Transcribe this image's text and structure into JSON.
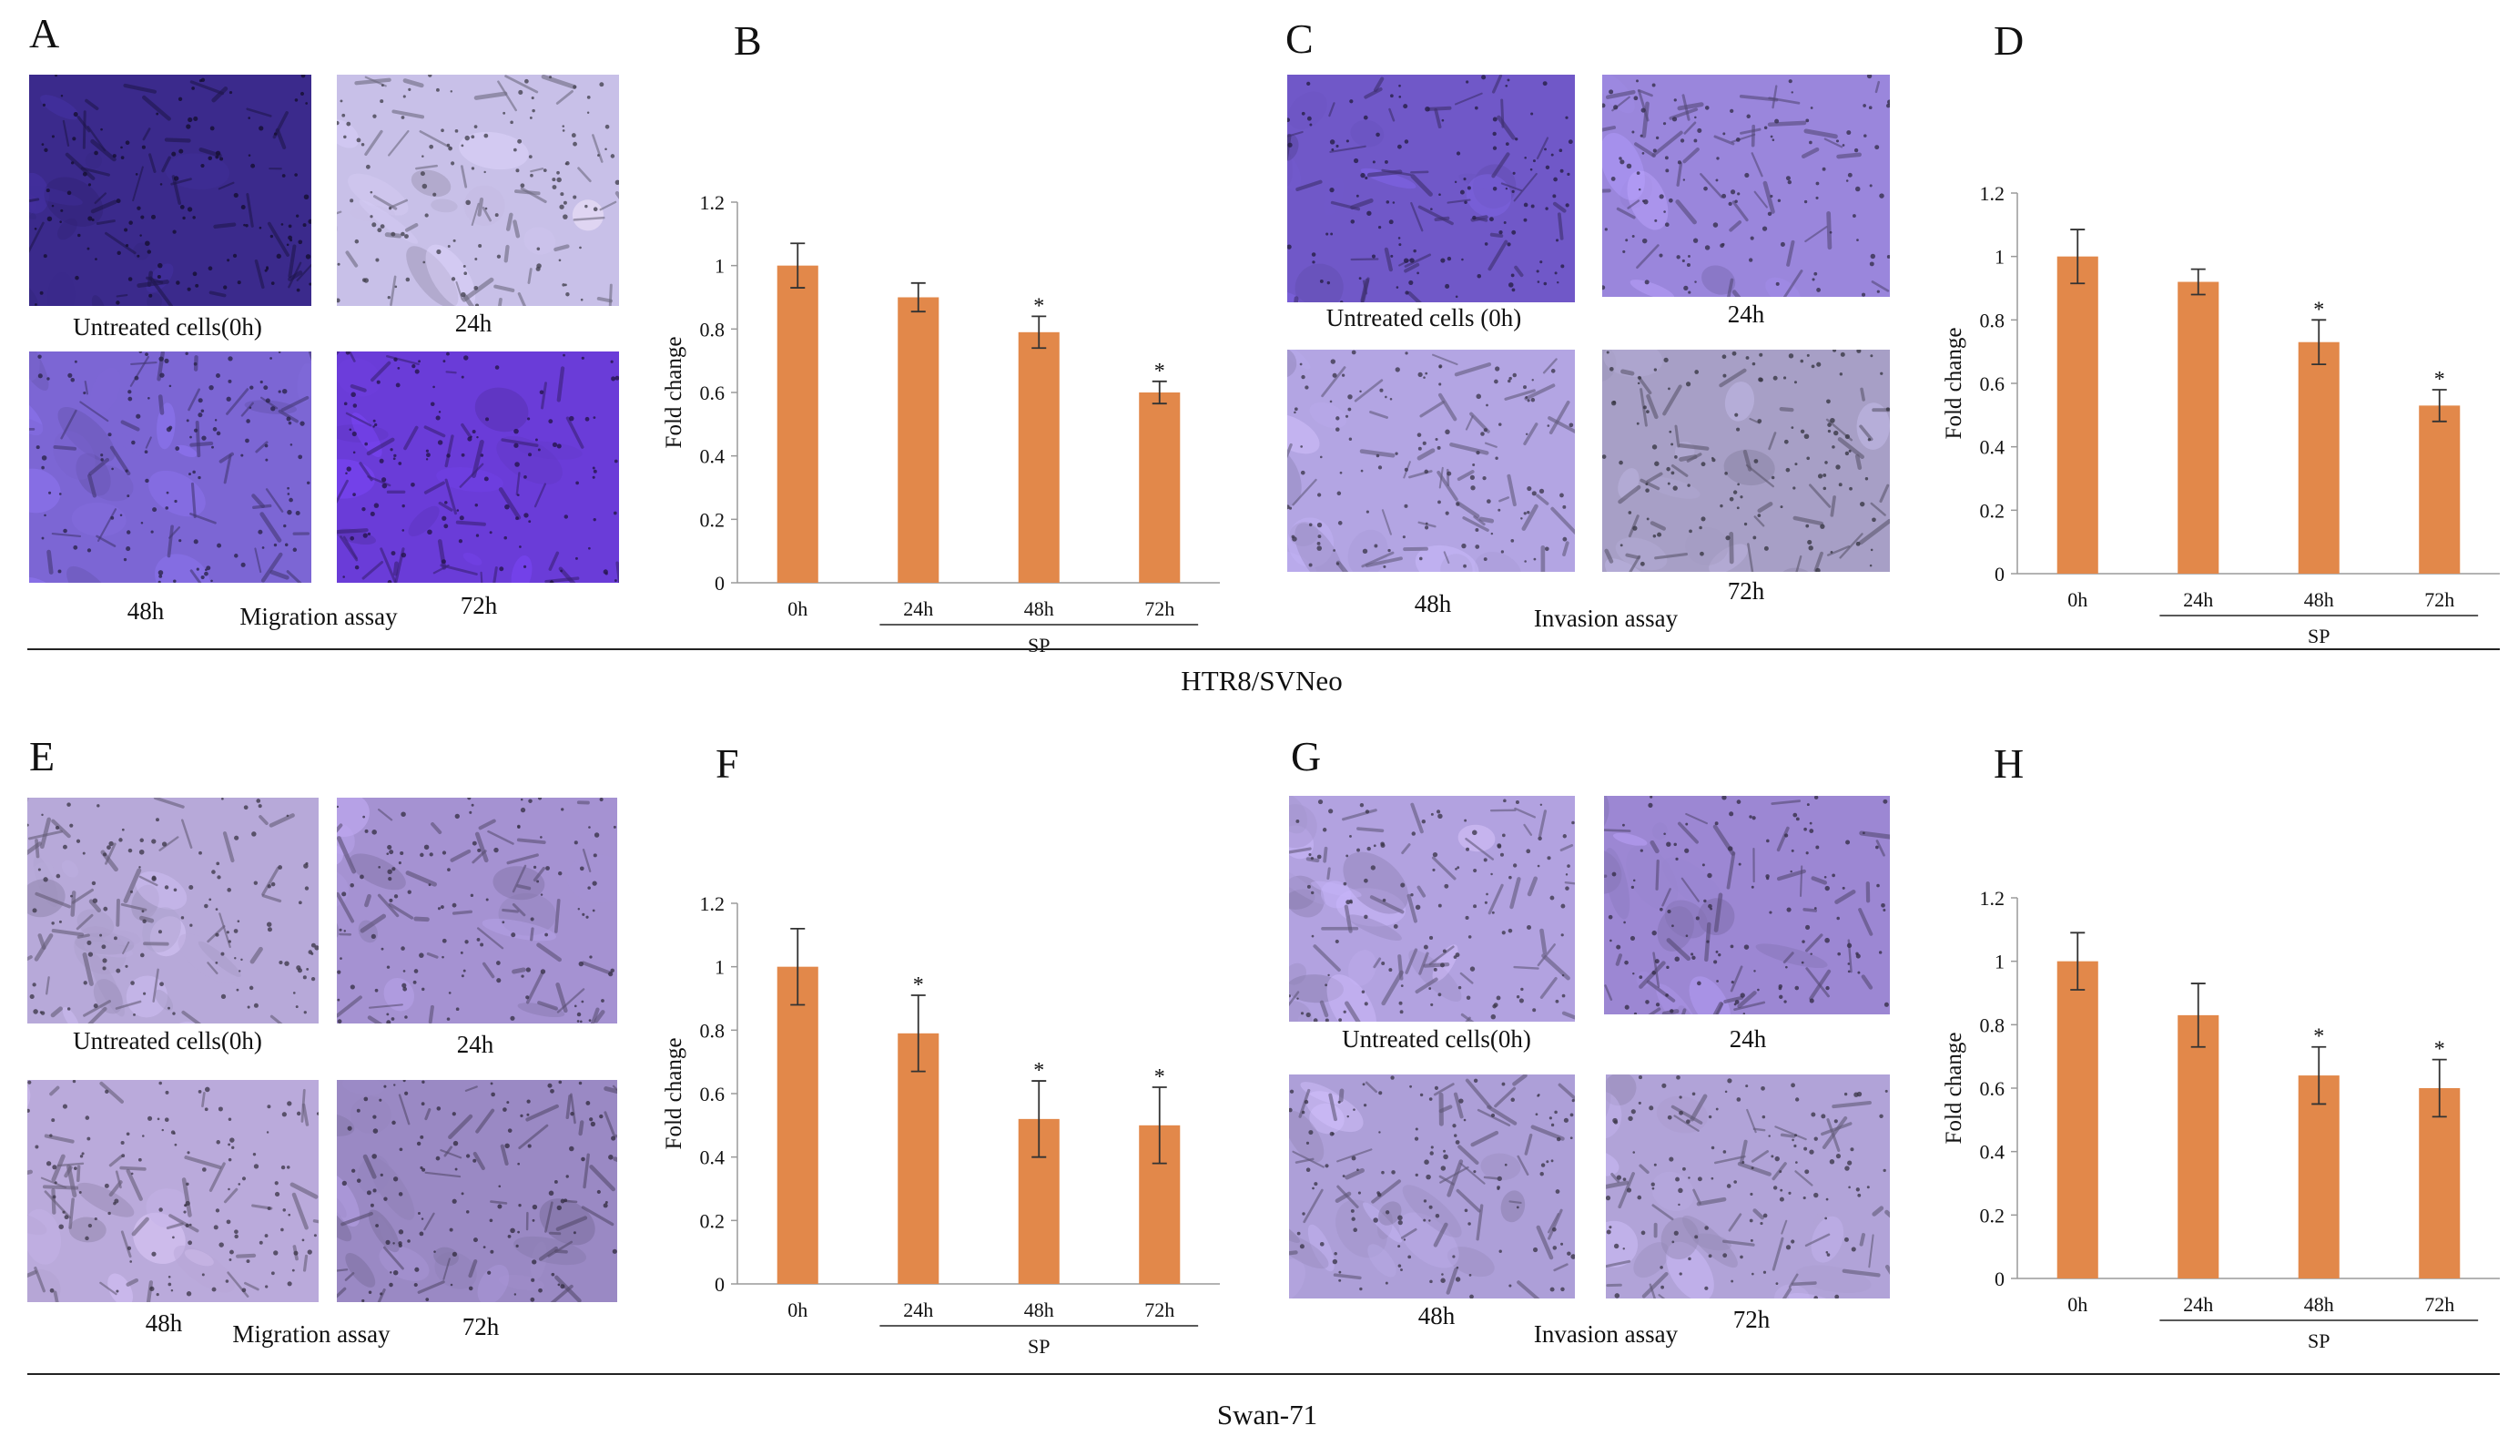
{
  "figure": {
    "sections": [
      {
        "cell_line": "HTR8/SVNeo"
      },
      {
        "cell_line": "Swan-71"
      }
    ],
    "panels": {
      "A": {
        "letter": "A",
        "assay": "Migration assay",
        "captions": [
          "Untreated cells(0h)",
          "24h",
          "48h",
          "72h"
        ],
        "colors": [
          "#3b2a8c",
          "#c8c0e8",
          "#7c66d4",
          "#6a3cd8"
        ]
      },
      "C": {
        "letter": "C",
        "assay": "Invasion assay",
        "captions": [
          "Untreated cells  (0h)",
          "24h",
          "48h",
          "72h"
        ],
        "colors": [
          "#7058c8",
          "#9a86dc",
          "#b3a5e3",
          "#a79fc6"
        ]
      },
      "E": {
        "letter": "E",
        "assay": "Migration assay",
        "captions": [
          "Untreated cells(0h)",
          "24h",
          "48h",
          "72h"
        ],
        "colors": [
          "#b7a9d9",
          "#a592d2",
          "#baaadb",
          "#9a89c4"
        ]
      },
      "G": {
        "letter": "G",
        "assay": "Invasion assay",
        "captions": [
          "Untreated cells(0h)",
          "24h",
          "48h",
          "72h"
        ],
        "colors": [
          "#b2a2e0",
          "#9c87d3",
          "#ad9fd8",
          "#b1a3d8"
        ]
      }
    },
    "letters": {
      "B": "B",
      "D": "D",
      "F": "F",
      "H": "H"
    }
  },
  "chart_data": [
    {
      "id": "B",
      "type": "bar",
      "title": "",
      "xlabel": "",
      "ylabel": "Fold change",
      "categories": [
        "0h",
        "24h",
        "48h",
        "72h"
      ],
      "values": [
        1.0,
        0.9,
        0.79,
        0.6
      ],
      "errors": [
        0.07,
        0.045,
        0.05,
        0.035
      ],
      "significance": [
        "",
        "",
        "*",
        "*"
      ],
      "group_label": "SP",
      "ylim": [
        0,
        1.2
      ],
      "yticks": [
        "0",
        "0.2",
        "0.4",
        "0.6",
        "0.8",
        "1",
        "1.2"
      ],
      "color": "#e2884a"
    },
    {
      "id": "D",
      "type": "bar",
      "title": "",
      "xlabel": "",
      "ylabel": "Fold change",
      "categories": [
        "0h",
        "24h",
        "48h",
        "72h"
      ],
      "values": [
        1.0,
        0.92,
        0.73,
        0.53
      ],
      "errors": [
        0.085,
        0.04,
        0.07,
        0.05
      ],
      "significance": [
        "",
        "",
        "*",
        "*"
      ],
      "group_label": "SP",
      "ylim": [
        0,
        1.2
      ],
      "yticks": [
        "0",
        "0.2",
        "0.4",
        "0.6",
        "0.8",
        "1",
        "1.2"
      ],
      "color": "#e2884a"
    },
    {
      "id": "F",
      "type": "bar",
      "title": "",
      "xlabel": "",
      "ylabel": "Fold change",
      "categories": [
        "0h",
        "24h",
        "48h",
        "72h"
      ],
      "values": [
        1.0,
        0.79,
        0.52,
        0.5
      ],
      "errors": [
        0.12,
        0.12,
        0.12,
        0.12
      ],
      "significance": [
        "",
        "*",
        "*",
        "*"
      ],
      "group_label": "SP",
      "ylim": [
        0,
        1.2
      ],
      "yticks": [
        "0",
        "0.2",
        "0.4",
        "0.6",
        "0.8",
        "1",
        "1.2"
      ],
      "color": "#e2884a"
    },
    {
      "id": "H",
      "type": "bar",
      "title": "",
      "xlabel": "",
      "ylabel": "Fold change",
      "categories": [
        "0h",
        "24h",
        "48h",
        "72h"
      ],
      "values": [
        1.0,
        0.83,
        0.64,
        0.6
      ],
      "errors": [
        0.09,
        0.1,
        0.09,
        0.09
      ],
      "significance": [
        "",
        "",
        "*",
        "*"
      ],
      "group_label": "SP",
      "ylim": [
        0,
        1.2
      ],
      "yticks": [
        "0",
        "0.2",
        "0.4",
        "0.6",
        "0.8",
        "1",
        "1.2"
      ],
      "color": "#e2884a"
    }
  ]
}
